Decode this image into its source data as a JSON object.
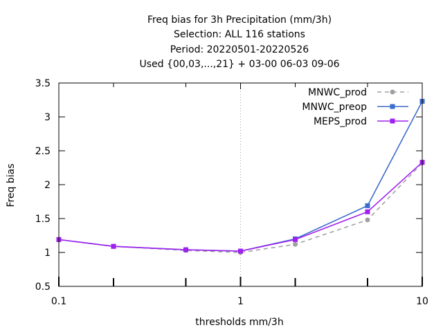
{
  "chart_data": {
    "type": "line",
    "title_lines": [
      "Freq bias  for 3h Precipitation (mm/3h)",
      "Selection: ALL    116 stations",
      "Period: 20220501-20220526",
      "Used {00,03,...,21} + 03-00 06-03 09-06"
    ],
    "xlabel": "thresholds mm/3h",
    "ylabel": "Freq bias",
    "x_scale": "log",
    "xlim": [
      0.1,
      10
    ],
    "ylim": [
      0.5,
      3.5
    ],
    "x_ticks": [
      0.1,
      1,
      10
    ],
    "x_tick_labels": [
      "0.1",
      "1",
      "10"
    ],
    "y_ticks": [
      0.5,
      1,
      1.5,
      2,
      2.5,
      3,
      3.5
    ],
    "y_tick_labels": [
      "0.5",
      "1",
      "1.5",
      "2",
      "2.5",
      "3",
      "3.5"
    ],
    "grid": "dotted vertical line at x = 1",
    "legend_position": "top-right",
    "x": [
      0.1,
      0.2,
      0.5,
      1,
      2,
      5,
      10
    ],
    "series": [
      {
        "name": "MNWC_prod",
        "color": "#a0a0a0",
        "dash": "dashed",
        "marker": "circle",
        "values": [
          1.19,
          1.09,
          1.03,
          1.0,
          1.12,
          1.48,
          2.32
        ]
      },
      {
        "name": "MNWC_preop",
        "color": "#3b6ccc",
        "dash": "solid",
        "marker": "square",
        "values": [
          1.19,
          1.09,
          1.04,
          1.02,
          1.2,
          1.69,
          3.23
        ]
      },
      {
        "name": "MEPS_prod",
        "color": "#a020f0",
        "dash": "solid",
        "marker": "square",
        "values": [
          1.19,
          1.09,
          1.04,
          1.02,
          1.19,
          1.6,
          2.33
        ]
      }
    ]
  }
}
